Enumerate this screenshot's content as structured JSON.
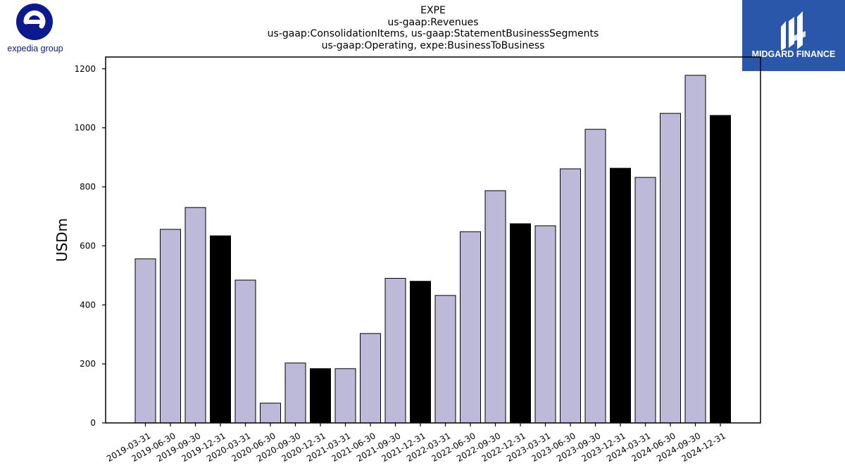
{
  "header": {
    "title_lines": [
      "EXPE",
      "us-gaap:Revenues",
      "us-gaap:ConsolidationItems, us-gaap:StatementBusinessSegments",
      "us-gaap:Operating, expe:BusinessToBusiness"
    ]
  },
  "logos": {
    "left_text": "expedia group",
    "left_color": "#0b1a8f",
    "right_text": "MIDGARD FINANCE",
    "right_bg": "#2b57ab"
  },
  "chart_data": {
    "type": "bar",
    "title": "EXPE\nus-gaap:Revenues\nus-gaap:ConsolidationItems, us-gaap:StatementBusinessSegments\nus-gaap:Operating, expe:BusinessToBusiness",
    "xlabel": "",
    "ylabel": "USDm",
    "ylim": [
      0,
      1240
    ],
    "yticks": [
      0,
      200,
      400,
      600,
      800,
      1000,
      1200
    ],
    "categories": [
      "2019-03-31",
      "2019-06-30",
      "2019-09-30",
      "2019-12-31",
      "2020-03-31",
      "2020-06-30",
      "2020-09-30",
      "2020-12-31",
      "2021-03-31",
      "2021-06-30",
      "2021-09-30",
      "2021-12-31",
      "2022-03-31",
      "2022-06-30",
      "2022-09-30",
      "2022-12-31",
      "2023-03-31",
      "2023-06-30",
      "2023-09-30",
      "2023-12-31",
      "2024-03-31",
      "2024-06-30",
      "2024-09-30",
      "2024-12-31"
    ],
    "values": [
      556,
      656,
      730,
      634,
      484,
      67,
      203,
      184,
      184,
      303,
      490,
      480,
      432,
      648,
      787,
      675,
      668,
      861,
      995,
      863,
      832,
      1049,
      1178,
      1042
    ],
    "quarter_color": "#bcb9d9",
    "year_end_color": "#000000",
    "grid": false,
    "legend": "none"
  }
}
